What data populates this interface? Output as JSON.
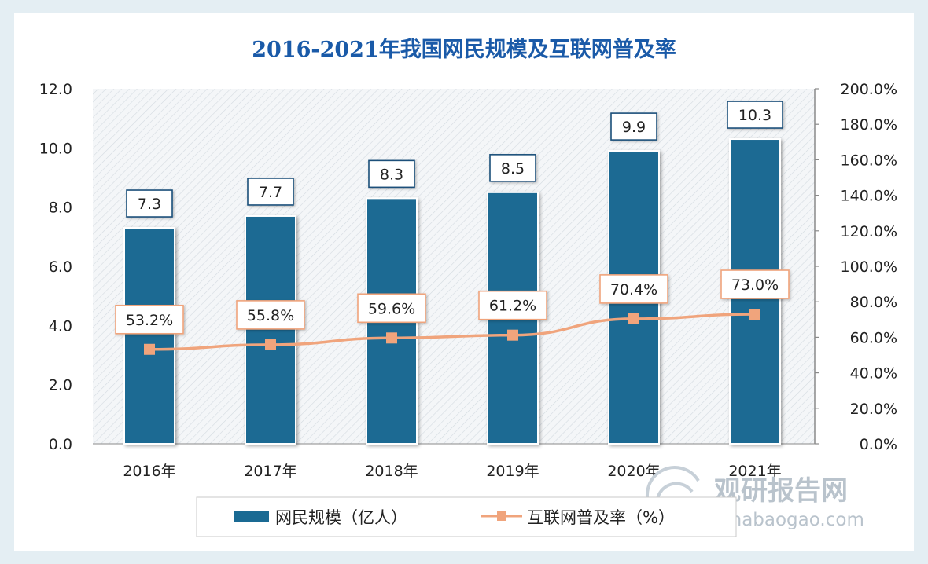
{
  "chart_data": {
    "type": "bar",
    "title": "2016-2021年我国网民规模及互联网普及率",
    "categories": [
      "2016年",
      "2017年",
      "2018年",
      "2019年",
      "2020年",
      "2021年"
    ],
    "series": [
      {
        "name": "网民规模（亿人）",
        "type": "bar",
        "axis": "left",
        "values": [
          7.3,
          7.7,
          8.3,
          8.5,
          9.9,
          10.3
        ],
        "labels": [
          "7.3",
          "7.7",
          "8.3",
          "8.5",
          "9.9",
          "10.3"
        ],
        "color": "#1a6a93"
      },
      {
        "name": "互联网普及率（%）",
        "type": "line",
        "axis": "right",
        "values": [
          53.2,
          55.8,
          59.6,
          61.2,
          70.4,
          73.0
        ],
        "labels": [
          "53.2%",
          "55.8%",
          "59.6%",
          "61.2%",
          "70.4%",
          "73.0%"
        ],
        "color": "#f0a47c"
      }
    ],
    "ylim_left": [
      0,
      12
    ],
    "yticks_left": [
      "0.0",
      "2.0",
      "4.0",
      "6.0",
      "8.0",
      "10.0",
      "12.0"
    ],
    "ylim_right": [
      0,
      200
    ],
    "yticks_right": [
      "0.0%",
      "20.0%",
      "40.0%",
      "60.0%",
      "80.0%",
      "100.0%",
      "120.0%",
      "140.0%",
      "160.0%",
      "180.0%",
      "200.0%"
    ],
    "legend_position": "bottom",
    "grid": false
  },
  "watermark": {
    "text_cn": "观研报告网",
    "text_en": "chinabaogao.com"
  },
  "colors": {
    "frame": "#e4eef3",
    "title": "#1a5aa8",
    "bar": "#1a6a93",
    "line": "#f0a47c",
    "label_border_bar": "#1a4f7a",
    "label_border_line": "#f0a47c"
  }
}
